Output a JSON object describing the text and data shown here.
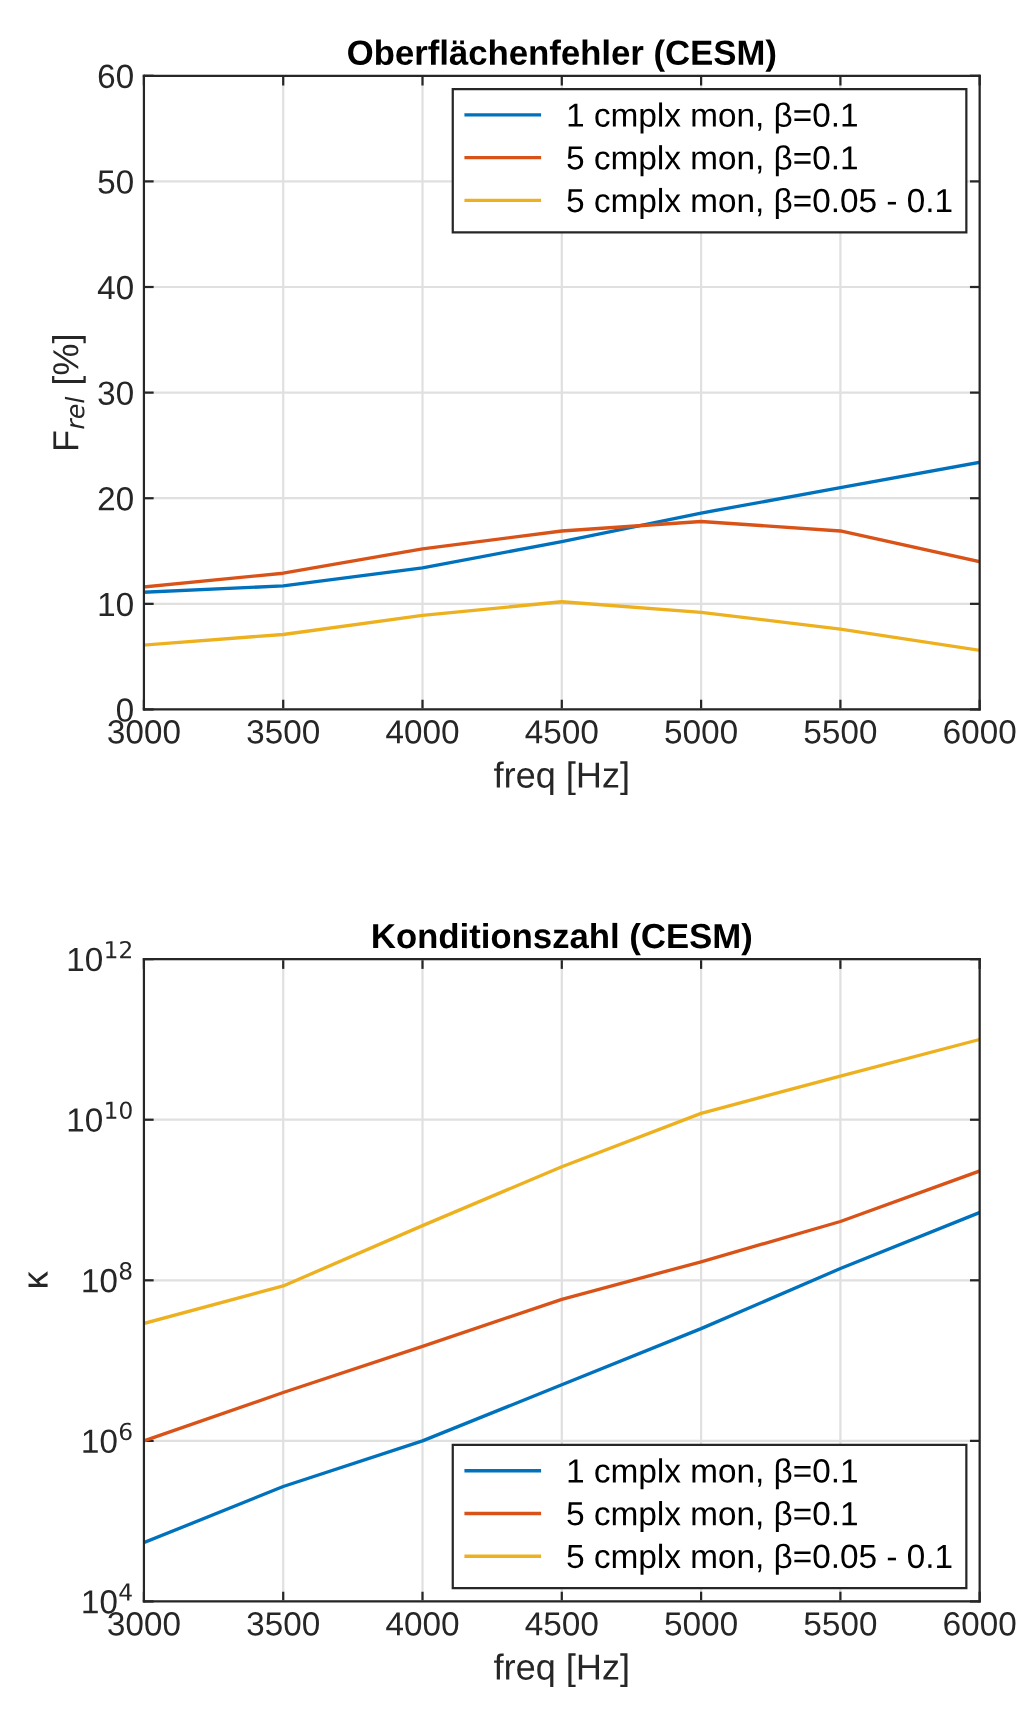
{
  "chart_data": [
    {
      "type": "line",
      "title": "Oberflächenfehler (CESM)",
      "xlabel": "freq [Hz]",
      "ylabel": "F$_{rel}$ [%]",
      "x": [
        3000,
        3500,
        4000,
        4500,
        5000,
        5500,
        6000
      ],
      "series": [
        {
          "name": "1 cmplx mon, β=0.1",
          "color": "#0072bd",
          "values": [
            11.1,
            11.7,
            13.4,
            15.9,
            18.6,
            21.0,
            23.4
          ]
        },
        {
          "name": "5 cmplx mon, β=0.1",
          "color": "#d95319",
          "values": [
            11.6,
            12.9,
            15.2,
            16.9,
            17.8,
            16.9,
            14.0
          ]
        },
        {
          "name": "5 cmplx mon, β=0.05 - 0.1",
          "color": "#edb120",
          "values": [
            6.1,
            7.1,
            8.9,
            10.2,
            9.2,
            7.6,
            5.6
          ]
        }
      ],
      "xlim": [
        3000,
        6000
      ],
      "xticks": [
        3000,
        3500,
        4000,
        4500,
        5000,
        5500,
        6000
      ],
      "ylim": [
        0,
        60
      ],
      "yticks": [
        0,
        10,
        20,
        30,
        40,
        50,
        60
      ],
      "grid": true,
      "legend": "top right",
      "marker": "none",
      "line_style": "solid"
    },
    {
      "type": "line",
      "title": "Konditionszahl (CESM)",
      "xlabel": "freq [Hz]",
      "ylabel": "κ",
      "x": [
        3000,
        3500,
        4000,
        4500,
        5000,
        5500,
        6000
      ],
      "series": [
        {
          "name": "1 cmplx mon, β=0.1",
          "color": "#0072bd",
          "values": [
            54000,
            270000,
            1000000,
            5000000,
            25000000,
            140000000,
            700000000
          ]
        },
        {
          "name": "5 cmplx mon, β=0.1",
          "color": "#d95319",
          "values": [
            1000000,
            4000000,
            15000000,
            58000000,
            170000000,
            540000000,
            2300000000
          ]
        },
        {
          "name": "5 cmplx mon, β=0.05 - 0.1",
          "color": "#edb120",
          "values": [
            29000000,
            85000000,
            480000000,
            2600000000,
            12000000000,
            35000000000,
            100000000000
          ]
        }
      ],
      "xlim": [
        3000,
        6000
      ],
      "xticks": [
        3000,
        3500,
        4000,
        4500,
        5000,
        5500,
        6000
      ],
      "log": "y",
      "ylim": [
        10000,
        1000000000000
      ],
      "yticks": [
        {
          "value": 10000,
          "label": "10$^{4}$"
        },
        {
          "value": 1000000,
          "label": "10$^{6}$"
        },
        {
          "value": 100000000,
          "label": "10$^{8}$"
        },
        {
          "value": 10000000000,
          "label": "10$^{10}$"
        },
        {
          "value": 1000000000000,
          "label": "10$^{12}$"
        }
      ],
      "grid": true,
      "legend": "bottom right",
      "marker": "none",
      "line_style": "solid"
    }
  ]
}
